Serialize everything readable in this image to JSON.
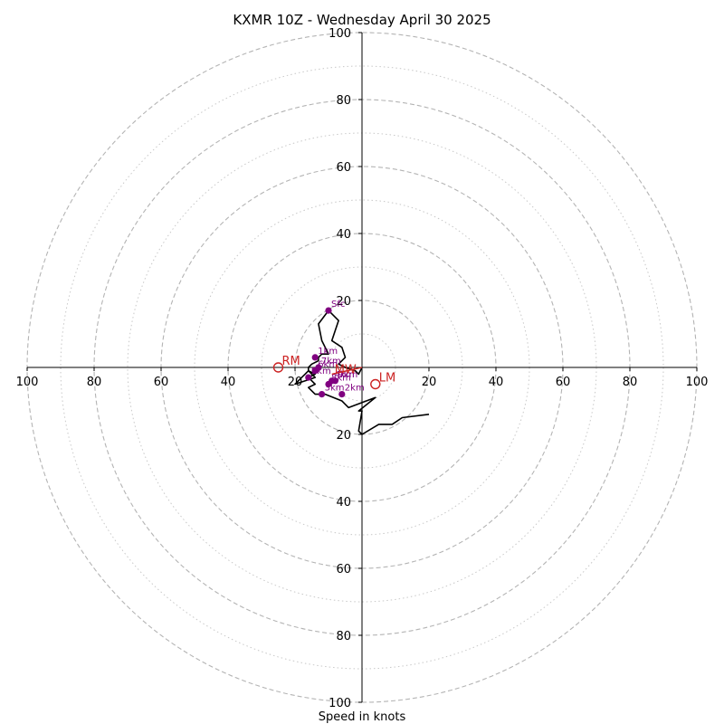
{
  "chart_data": {
    "type": "scatter",
    "title": "KXMR 10Z - Wednesday April 30 2025",
    "xlabel": "Speed in knots",
    "ylabel": "",
    "xlim": [
      -100,
      100
    ],
    "ylim": [
      -100,
      100
    ],
    "grid": true,
    "ring_dashed": [
      20,
      40,
      60,
      80,
      100
    ],
    "ring_dotted": [
      10,
      30,
      50,
      70,
      90
    ],
    "x_tick_labels": [
      "100",
      "80",
      "60",
      "40",
      "20",
      "20",
      "40",
      "60",
      "80",
      "100"
    ],
    "y_tick_labels": [
      "100",
      "80",
      "60",
      "40",
      "20",
      "20",
      "40",
      "60",
      "80",
      "100"
    ],
    "tick_values": [
      -100,
      -80,
      -60,
      -40,
      -20,
      20,
      40,
      60,
      80,
      100
    ],
    "hodograph": {
      "x": [
        20,
        12,
        9,
        5,
        0,
        -1,
        0,
        -1,
        4,
        -4,
        -6,
        -11,
        -14,
        -16,
        -14,
        -16,
        -14,
        -16,
        -17,
        -18,
        -20,
        -14,
        -16,
        -16,
        -15,
        -13,
        -13,
        -12,
        -10,
        -11,
        -12,
        -13,
        -10,
        -7,
        -8,
        -9,
        -6,
        -5,
        -6,
        -7,
        -5,
        -2,
        -1,
        0
      ],
      "y": [
        -14,
        -15,
        -17,
        -17,
        -20,
        -19,
        -13,
        -13,
        -9,
        -12,
        -10,
        -8,
        -8,
        -6,
        -5,
        -3,
        -2,
        -1,
        -2,
        -3,
        -5,
        -3,
        -1,
        0,
        1,
        2,
        3,
        4,
        4,
        6,
        8,
        13,
        17,
        14,
        11,
        8,
        6,
        3,
        2,
        1,
        0,
        -1,
        -2,
        0
      ]
    },
    "height_markers": [
      {
        "label": "Sfc",
        "x": -10,
        "y": 17
      },
      {
        "label": "1km",
        "x": -14,
        "y": 3
      },
      {
        "label": "2km",
        "x": -6,
        "y": -8
      },
      {
        "label": "3km",
        "x": -12,
        "y": -8
      },
      {
        "label": "4km",
        "x": -9,
        "y": -4
      },
      {
        "label": "5km",
        "x": -16,
        "y": -3
      },
      {
        "label": "6km",
        "x": -14,
        "y": -1
      },
      {
        "label": "7km",
        "x": -13,
        "y": 0
      },
      {
        "label": "8km",
        "x": -10,
        "y": -5
      },
      {
        "label": "9km",
        "x": -8,
        "y": -4
      }
    ],
    "mean_wind": {
      "label": "MW",
      "x": -9,
      "y": -2
    },
    "right_mover": {
      "label": "RM",
      "x": -25,
      "y": 0
    },
    "left_mover": {
      "label": "LM",
      "x": 4,
      "y": -5
    }
  }
}
